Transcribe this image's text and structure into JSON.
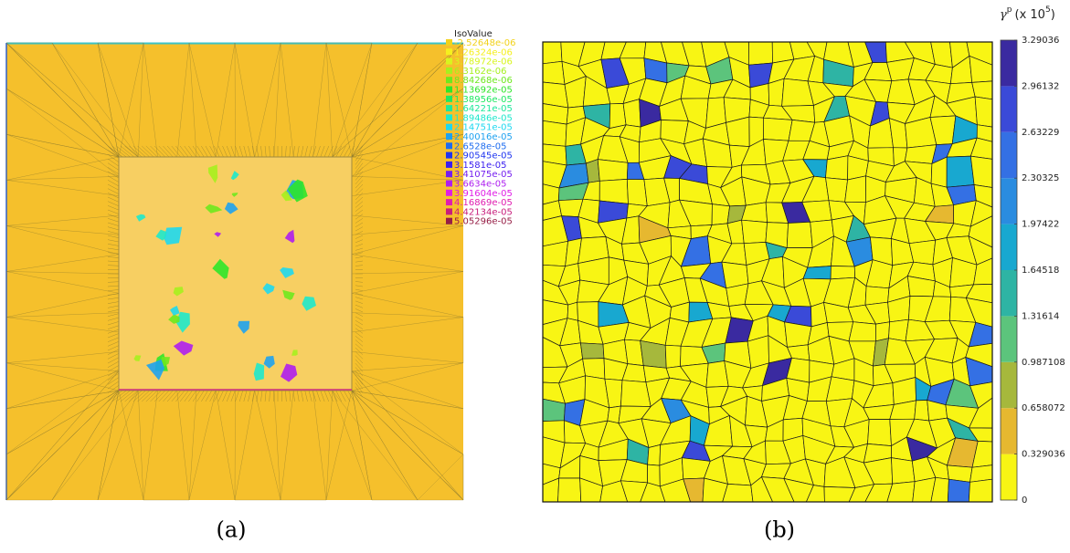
{
  "panel_a": {
    "caption": "(a)",
    "legend": {
      "title": "IsoValue",
      "entries": [
        {
          "label": "-2.52648e-06",
          "color": "#f2d21a"
        },
        {
          "label": "1.26324e-06",
          "color": "#f5f01e"
        },
        {
          "label": "3.78972e-06",
          "color": "#d8f51e"
        },
        {
          "label": "6.3162e-06",
          "color": "#a6f01e"
        },
        {
          "label": "8.84268e-06",
          "color": "#6ee81e"
        },
        {
          "label": "1.13692e-05",
          "color": "#2ee62a"
        },
        {
          "label": "1.38956e-05",
          "color": "#1ee860"
        },
        {
          "label": "1.64221e-05",
          "color": "#1ee89a"
        },
        {
          "label": "1.89486e-05",
          "color": "#1ee8cc"
        },
        {
          "label": "2.14751e-05",
          "color": "#1ed8f0"
        },
        {
          "label": "2.40016e-05",
          "color": "#1ea2f0"
        },
        {
          "label": "2.6528e-05",
          "color": "#1e6cf0"
        },
        {
          "label": "2.90545e-05",
          "color": "#1e34f0"
        },
        {
          "label": "3.1581e-05",
          "color": "#3a1ef0"
        },
        {
          "label": "3.41075e-05",
          "color": "#741ef0"
        },
        {
          "label": "3.6634e-05",
          "color": "#ae1ef0"
        },
        {
          "label": "3.91604e-05",
          "color": "#e01ee6"
        },
        {
          "label": "4.16869e-05",
          "color": "#e01eb0"
        },
        {
          "label": "4.42134e-05",
          "color": "#c81e7c"
        },
        {
          "label": "5.05296e-05",
          "color": "#961e46"
        }
      ]
    }
  },
  "panel_b": {
    "caption": "(b)",
    "colorbar": {
      "symbol": "γ",
      "symbol_sup": "p",
      "unit": "(x 10",
      "unit_exp": "5",
      "unit_close": ")",
      "ticks": [
        "0",
        "0.329036",
        "0.658072",
        "0.987108",
        "1.31614",
        "1.64518",
        "1.97422",
        "2.30325",
        "2.63229",
        "2.96132",
        "3.29036"
      ],
      "colors": [
        "#f8f514",
        "#e6b830",
        "#a6b83c",
        "#5cc47c",
        "#2eb4a4",
        "#18a8d0",
        "#2a8ce0",
        "#3470e4",
        "#3a4ad8",
        "#3a2aa0"
      ]
    }
  }
}
